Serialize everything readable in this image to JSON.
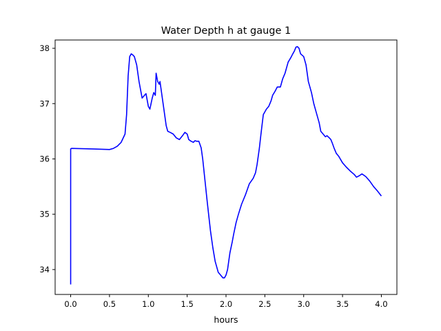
{
  "chart_data": {
    "type": "line",
    "title": "Water Depth h at gauge 1",
    "xlabel": "hours",
    "ylabel": "",
    "xlim": [
      -0.2,
      4.2
    ],
    "ylim": [
      33.55,
      38.15
    ],
    "xticks": [
      0.0,
      0.5,
      1.0,
      1.5,
      2.0,
      2.5,
      3.0,
      3.5,
      4.0
    ],
    "xtick_labels": [
      "0.0",
      "0.5",
      "1.0",
      "1.5",
      "2.0",
      "2.5",
      "3.0",
      "3.5",
      "4.0"
    ],
    "yticks": [
      34,
      35,
      36,
      37,
      38
    ],
    "ytick_labels": [
      "34",
      "35",
      "36",
      "37",
      "38"
    ],
    "grid": false,
    "legend": "none",
    "line_color": "#0000ff",
    "series": [
      {
        "x": [
          0.0,
          0.0,
          0.01,
          0.3,
          0.5,
          0.55,
          0.6,
          0.65,
          0.7,
          0.72,
          0.74,
          0.76,
          0.78,
          0.8,
          0.82,
          0.85,
          0.88,
          0.92,
          0.95,
          0.97,
          1.0,
          1.02,
          1.05,
          1.07,
          1.09,
          1.1,
          1.12,
          1.14,
          1.15,
          1.17,
          1.2,
          1.23,
          1.25,
          1.28,
          1.32,
          1.36,
          1.4,
          1.44,
          1.47,
          1.5,
          1.52,
          1.55,
          1.58,
          1.6,
          1.62,
          1.65,
          1.68,
          1.7,
          1.73,
          1.76,
          1.8,
          1.83,
          1.86,
          1.9,
          1.93,
          1.96,
          1.98,
          2.0,
          2.02,
          2.05,
          2.08,
          2.1,
          2.13,
          2.16,
          2.2,
          2.25,
          2.3,
          2.35,
          2.38,
          2.4,
          2.43,
          2.45,
          2.48,
          2.5,
          2.52,
          2.55,
          2.58,
          2.6,
          2.63,
          2.66,
          2.7,
          2.73,
          2.76,
          2.8,
          2.83,
          2.86,
          2.88,
          2.9,
          2.92,
          2.94,
          2.96,
          3.0,
          3.03,
          3.06,
          3.1,
          3.13,
          3.16,
          3.2,
          3.22,
          3.25,
          3.28,
          3.3,
          3.33,
          3.35,
          3.37,
          3.39,
          3.42,
          3.45,
          3.5,
          3.55,
          3.6,
          3.65,
          3.68,
          3.72,
          3.75,
          3.8,
          3.85,
          3.9,
          3.95,
          4.0
        ],
        "values": [
          33.73,
          36.18,
          36.19,
          36.18,
          36.17,
          36.19,
          36.23,
          36.3,
          36.45,
          36.8,
          37.5,
          37.85,
          37.9,
          37.88,
          37.85,
          37.7,
          37.4,
          37.1,
          37.15,
          37.18,
          36.95,
          36.9,
          37.1,
          37.2,
          37.15,
          37.55,
          37.4,
          37.35,
          37.4,
          37.2,
          36.9,
          36.6,
          36.5,
          36.48,
          36.45,
          36.38,
          36.35,
          36.42,
          36.48,
          36.45,
          36.35,
          36.32,
          36.3,
          36.33,
          36.32,
          36.32,
          36.2,
          36.0,
          35.6,
          35.2,
          34.7,
          34.4,
          34.15,
          33.95,
          33.9,
          33.85,
          33.85,
          33.9,
          34.0,
          34.3,
          34.5,
          34.65,
          34.85,
          35.0,
          35.18,
          35.35,
          35.55,
          35.65,
          35.75,
          35.9,
          36.2,
          36.45,
          36.8,
          36.85,
          36.9,
          36.95,
          37.05,
          37.15,
          37.22,
          37.3,
          37.3,
          37.45,
          37.55,
          37.75,
          37.82,
          37.9,
          37.95,
          38.02,
          38.03,
          38.0,
          37.9,
          37.85,
          37.7,
          37.4,
          37.2,
          37.0,
          36.85,
          36.65,
          36.5,
          36.45,
          36.4,
          36.42,
          36.38,
          36.35,
          36.28,
          36.2,
          36.1,
          36.05,
          35.93,
          35.85,
          35.78,
          35.72,
          35.67,
          35.7,
          35.73,
          35.68,
          35.6,
          35.5,
          35.42,
          35.33
        ]
      }
    ]
  }
}
